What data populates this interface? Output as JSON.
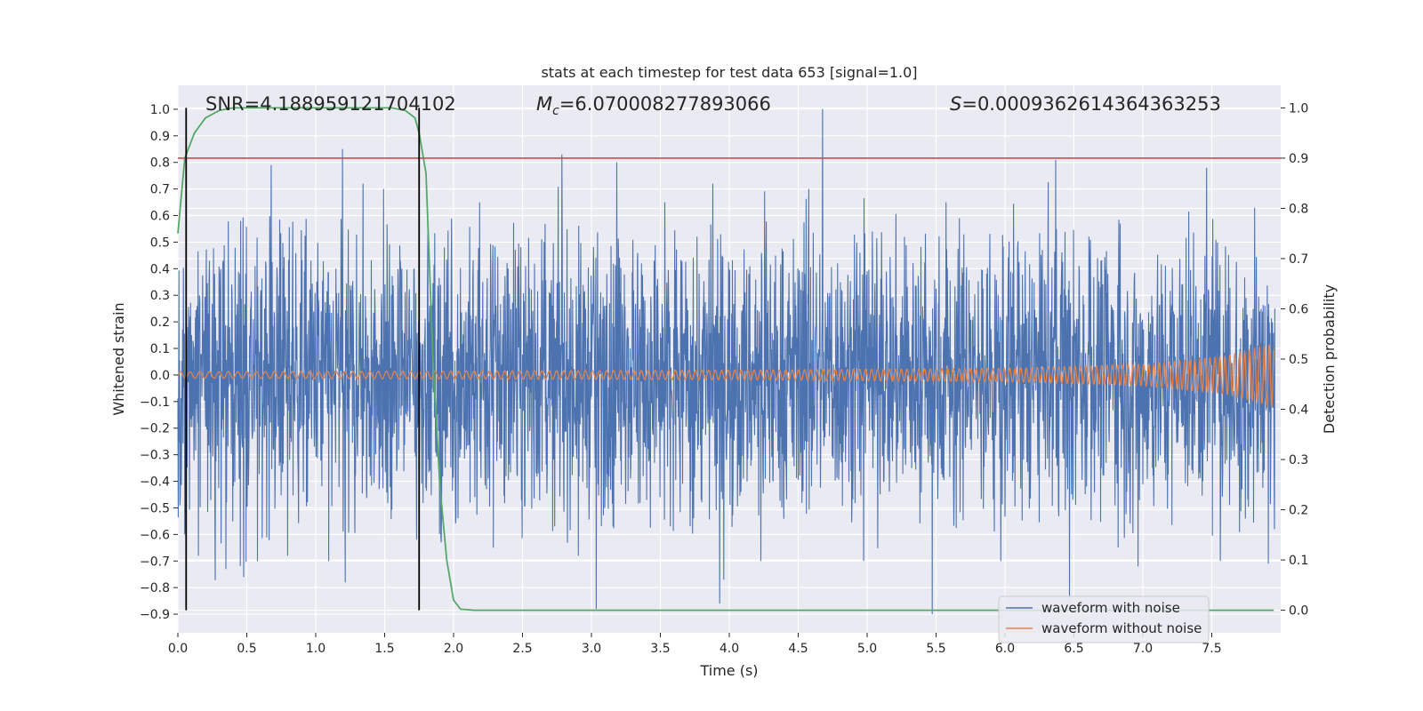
{
  "chart_data": {
    "type": "line",
    "title": "stats at each timestep for test data 653 [signal=1.0]",
    "xlabel": "Time (s)",
    "ylabel": "Whitened strain",
    "ylabel_right": "Detection probability",
    "xlim": [
      0.0,
      8.0
    ],
    "ylim": [
      -0.97,
      1.09
    ],
    "ylim_right": [
      -0.045,
      1.045
    ],
    "xticks": [
      0.0,
      0.5,
      1.0,
      1.5,
      2.0,
      2.5,
      3.0,
      3.5,
      4.0,
      4.5,
      5.0,
      5.5,
      6.0,
      6.5,
      7.0,
      7.5
    ],
    "xtick_labels": [
      "0.0",
      "0.5",
      "1.0",
      "1.5",
      "2.0",
      "2.5",
      "3.0",
      "3.5",
      "4.0",
      "4.5",
      "5.0",
      "5.5",
      "6.0",
      "6.5",
      "7.0",
      "7.5"
    ],
    "yticks": [
      1.0,
      0.9,
      0.8,
      0.7,
      0.6,
      0.5,
      0.4,
      0.3,
      0.2,
      0.1,
      0.0,
      -0.1,
      -0.2,
      -0.3,
      -0.4,
      -0.5,
      -0.6,
      -0.7,
      -0.8,
      -0.9
    ],
    "ytick_labels": [
      "1.0",
      "0.9",
      "0.8",
      "0.7",
      "0.6",
      "0.5",
      "0.4",
      "0.3",
      "0.2",
      "0.1",
      "0.0",
      "−0.1",
      "−0.2",
      "−0.3",
      "−0.4",
      "−0.5",
      "−0.6",
      "−0.7",
      "−0.8",
      "−0.9"
    ],
    "yticks_right": [
      1.0,
      0.9,
      0.8,
      0.7,
      0.6,
      0.5,
      0.4,
      0.3,
      0.2,
      0.1,
      0.0
    ],
    "ytick_labels_right": [
      "1.0",
      "0.9",
      "0.8",
      "0.7",
      "0.6",
      "0.5",
      "0.4",
      "0.3",
      "0.2",
      "0.1",
      "0.0"
    ],
    "grid": true,
    "legend_location": "lower right",
    "stats": {
      "snr": "SNR=4.188959121704102",
      "mc_symbol": "M",
      "mc_subscript": "c",
      "mc_value": "=6.070008277893066",
      "s_symbol": "S",
      "s_value": "=0.0009362614364363253"
    },
    "series": [
      {
        "name": "waveform with noise",
        "color": "#4c72b0",
        "axis": "left",
        "description": "dense noise between about -0.45 and 0.5 with spikes",
        "spikes": [
          {
            "x": 0.05,
            "y": -0.6
          },
          {
            "x": 0.15,
            "y": -0.68
          },
          {
            "x": 0.35,
            "y": -0.73
          },
          {
            "x": 0.48,
            "y": -0.76
          },
          {
            "x": 0.58,
            "y": -0.7
          },
          {
            "x": 0.68,
            "y": 0.79
          },
          {
            "x": 0.8,
            "y": -0.68
          },
          {
            "x": 1.1,
            "y": -0.7
          },
          {
            "x": 1.2,
            "y": 0.85
          },
          {
            "x": 1.22,
            "y": -0.78
          },
          {
            "x": 1.35,
            "y": 0.72
          },
          {
            "x": 1.5,
            "y": 0.7
          },
          {
            "x": 1.74,
            "y": -0.62
          },
          {
            "x": 1.92,
            "y": -0.63
          },
          {
            "x": 2.2,
            "y": 0.65
          },
          {
            "x": 2.3,
            "y": -0.65
          },
          {
            "x": 2.8,
            "y": 0.83
          },
          {
            "x": 2.92,
            "y": -0.68
          },
          {
            "x": 3.05,
            "y": -0.88
          },
          {
            "x": 3.2,
            "y": 0.8
          },
          {
            "x": 3.55,
            "y": 0.65
          },
          {
            "x": 3.9,
            "y": 0.72
          },
          {
            "x": 3.95,
            "y": -0.86
          },
          {
            "x": 4.25,
            "y": -0.7
          },
          {
            "x": 4.6,
            "y": 0.7
          },
          {
            "x": 4.7,
            "y": 1.0
          },
          {
            "x": 5.0,
            "y": -0.7
          },
          {
            "x": 5.5,
            "y": -0.9
          },
          {
            "x": 5.6,
            "y": 0.65
          },
          {
            "x": 6.0,
            "y": -0.7
          },
          {
            "x": 6.4,
            "y": 0.81
          },
          {
            "x": 6.5,
            "y": -0.84
          },
          {
            "x": 7.0,
            "y": -0.72
          },
          {
            "x": 7.5,
            "y": 0.78
          },
          {
            "x": 7.6,
            "y": -0.7
          },
          {
            "x": 7.85,
            "y": 0.63
          },
          {
            "x": 7.95,
            "y": -0.71
          }
        ]
      },
      {
        "name": "waveform without noise",
        "color": "#dd8452",
        "axis": "left",
        "description": "chirp signal, amplitude growing toward the end",
        "amplitude_points": [
          [
            0.0,
            0.012
          ],
          [
            4.0,
            0.018
          ],
          [
            6.0,
            0.025
          ],
          [
            7.0,
            0.04
          ],
          [
            7.6,
            0.07
          ],
          [
            7.95,
            0.12
          ]
        ]
      },
      {
        "name": "detection probability",
        "color": "#55a868",
        "axis": "right",
        "x": [
          0.0,
          0.05,
          0.12,
          0.2,
          0.3,
          0.4,
          0.6,
          0.8,
          1.0,
          1.2,
          1.4,
          1.55,
          1.65,
          1.72,
          1.75,
          1.8,
          1.85,
          1.9,
          1.95,
          2.0,
          2.05,
          2.15,
          3.0,
          4.0,
          5.0,
          6.0,
          7.0,
          7.95
        ],
        "y": [
          0.75,
          0.9,
          0.95,
          0.98,
          0.995,
          1.0,
          1.0,
          1.0,
          1.0,
          1.0,
          1.0,
          1.0,
          0.995,
          0.98,
          0.95,
          0.87,
          0.5,
          0.25,
          0.1,
          0.02,
          0.002,
          0.0,
          0.0,
          0.0,
          0.0,
          0.0,
          0.0,
          0.0
        ]
      }
    ],
    "threshold": {
      "value": 0.9,
      "axis": "right",
      "color": "#c44e52"
    },
    "vertical_lines": [
      {
        "x": 0.06,
        "color": "#000000"
      },
      {
        "x": 1.75,
        "color": "#000000"
      }
    ],
    "legend": [
      "waveform with noise",
      "waveform without noise"
    ],
    "colors": {
      "axes_bg": "#eaeaf2",
      "grid": "#ffffff",
      "noise": "#4c72b0",
      "clean": "#dd8452",
      "prob": "#55a868",
      "threshold": "#c44e52"
    }
  }
}
